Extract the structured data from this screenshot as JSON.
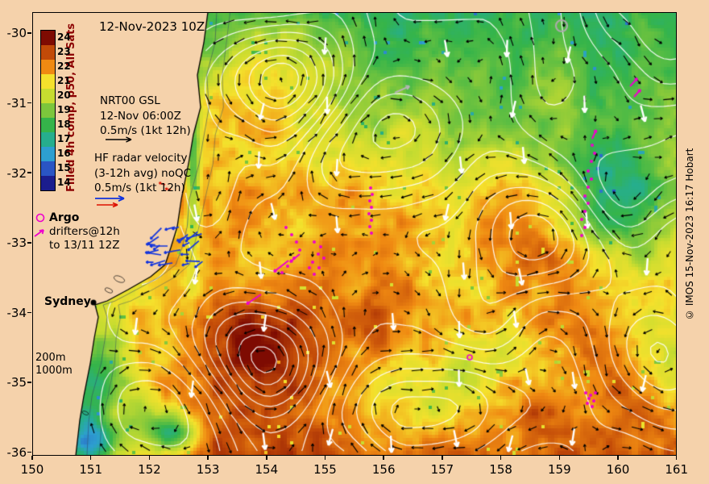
{
  "figure": {
    "bg": "#f5d2ab",
    "title_date": "12-Nov-2023 10Z",
    "copyright": "© IMOS 15-Nov-2023 16:17 Hobart"
  },
  "colorbar": {
    "label": "Filled 4h comp, p50, All Sats",
    "ticks": [
      "24",
      "23",
      "22",
      "21",
      "20",
      "19",
      "18",
      "17",
      "16",
      "15",
      "14"
    ],
    "colors": [
      "#7e0b02",
      "#c24a08",
      "#f08a12",
      "#f5e12c",
      "#c7dc30",
      "#7cc63c",
      "#35b44a",
      "#26ae8d",
      "#2d9fd0",
      "#2a55c4",
      "#1b1d8e"
    ]
  },
  "legend": {
    "gsl_line1": "NRT00 GSL",
    "gsl_line2": "12-Nov 06:00Z",
    "gsl_line3": "0.5m/s (1kt 12h)",
    "hf_line1": "HF radar velocity",
    "hf_line2": "(3-12h avg) noQC",
    "hf_line3": "0.5m/s (1kt 12h)",
    "argo_label": "Argo",
    "drifters_line1": "drifters@12h",
    "drifters_line2": "to 13/11 12Z",
    "depth_200": "200m",
    "depth_1000": "1000m"
  },
  "map_labels": {
    "city": "Sydney"
  },
  "axes": {
    "x_ticks": [
      "150",
      "151",
      "152",
      "153",
      "154",
      "155",
      "156",
      "157",
      "158",
      "159",
      "160",
      "161"
    ],
    "y_ticks": [
      "-30",
      "-31",
      "-32",
      "-33",
      "-34",
      "-35",
      "-36"
    ],
    "x_range": [
      150,
      161
    ],
    "y_range": [
      -36,
      -30
    ]
  },
  "colors": {
    "drifter": "#ee00cc",
    "argo": "#ee00cc",
    "hf_radar": "#1133dd",
    "hf_radar_alt": "#dd1100",
    "gsl_arrow": "#000000",
    "contours": "#ffffff",
    "white_arrows": "#ffffff",
    "colorbar_label": "#8b0000"
  }
}
